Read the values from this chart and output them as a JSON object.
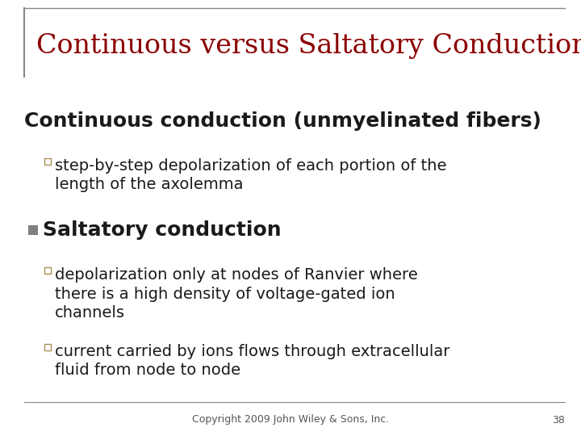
{
  "title": "Continuous versus Saltatory Conduction",
  "title_color": "#8B0000",
  "title_fontsize": 24,
  "background_color": "#FFFFFF",
  "section1_heading": "Continuous conduction (unmyelinated fibers)",
  "section1_heading_fontsize": 18,
  "section1_heading_color": "#1a1a1a",
  "section1_bullet_color": "#A89050",
  "section1_bullets": [
    "step-by-step depolarization of each portion of the\nlength of the axolemma"
  ],
  "section2_heading": "Saltatory conduction",
  "section2_heading_fontsize": 18,
  "section2_heading_color": "#1a1a1a",
  "section2_square_color": "#808080",
  "section2_bullet_color": "#A89050",
  "section2_bullets": [
    "depolarization only at nodes of Ranvier where\nthere is a high density of voltage-gated ion\nchannels",
    "current carried by ions flows through extracellular\nfluid from node to node"
  ],
  "bullet_fontsize": 14,
  "footer_text": "Copyright 2009 John Wiley & Sons, Inc.",
  "footer_page": "38",
  "footer_fontsize": 9,
  "footer_color": "#555555",
  "line_color": "#888888"
}
